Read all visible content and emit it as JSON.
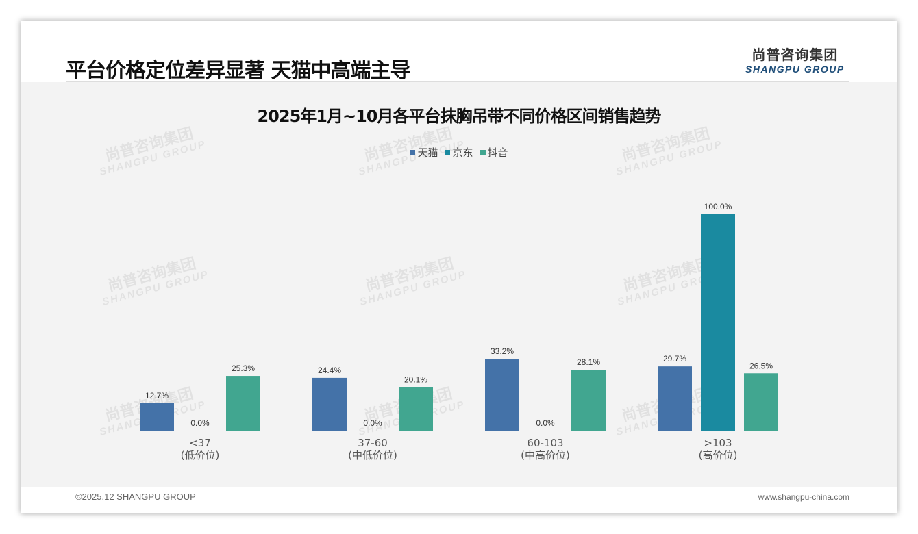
{
  "header": {
    "title": "平台价格定位差异显著 天猫中高端主导"
  },
  "logo": {
    "cn": "尚普咨询集团",
    "en": "SHANGPU GROUP"
  },
  "footer": {
    "copyright": "©2025.12 SHANGPU GROUP",
    "url": "www.shangpu-china.com"
  },
  "chart_data": {
    "type": "bar",
    "title": "2025年1月~10月各平台抹胸吊带不同价格区间销售趋势",
    "categories": [
      [
        "<37",
        "(低价位)"
      ],
      [
        "37-60",
        "(中低价位)"
      ],
      [
        "60-103",
        "(中高价位)"
      ],
      [
        ">103",
        "(高价位)"
      ]
    ],
    "series": [
      {
        "name": "天猫",
        "color": "#4472a8",
        "values": [
          12.7,
          24.4,
          33.2,
          29.7
        ]
      },
      {
        "name": "京东",
        "color": "#1a8aa0",
        "values": [
          0.0,
          0.0,
          0.0,
          100.0
        ]
      },
      {
        "name": "抖音",
        "color": "#41a690",
        "values": [
          25.3,
          20.1,
          28.1,
          26.5
        ]
      }
    ],
    "ylim": [
      0,
      100
    ],
    "legend": "top",
    "grid": false,
    "value_format": "%"
  }
}
